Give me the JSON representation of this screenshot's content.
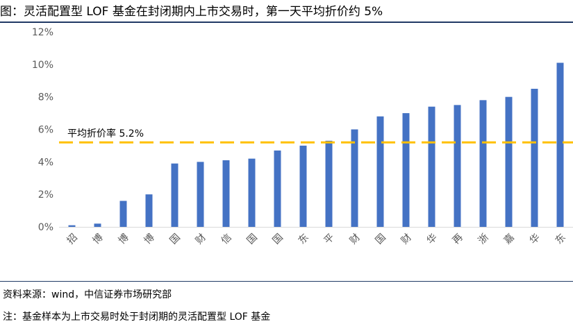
{
  "header": {
    "title": "图：灵活配置型 LOF 基金在封闭期内上市交易时，第一天平均折价约 5%"
  },
  "footer": {
    "source": "资料来源：wind，中信证券市场研究部",
    "note": "注：基金样本为上市交易时处于封闭期的灵活配置型 LOF 基金"
  },
  "chart_data": {
    "type": "bar",
    "categories": [
      "招",
      "博",
      "博",
      "博",
      "国",
      "财",
      "信",
      "国",
      "国",
      "东",
      "平",
      "财",
      "国",
      "财",
      "华",
      "再",
      "浙",
      "嘉",
      "华",
      "东"
    ],
    "values": [
      0.1,
      0.2,
      1.6,
      2.0,
      3.9,
      4.0,
      4.1,
      4.2,
      4.7,
      5.0,
      5.3,
      6.0,
      6.8,
      7.0,
      7.4,
      7.5,
      7.8,
      8.0,
      8.5,
      10.1
    ],
    "ylim": [
      0,
      12
    ],
    "yticks": [
      0,
      2,
      4,
      6,
      8,
      10,
      12
    ],
    "y_unit": "%",
    "grid": false,
    "bar_color": "#4472c4",
    "reference_line": {
      "value": 5.2,
      "label": "平均折价率 5.2%",
      "color": "#ffc000",
      "style": "dashed"
    }
  }
}
